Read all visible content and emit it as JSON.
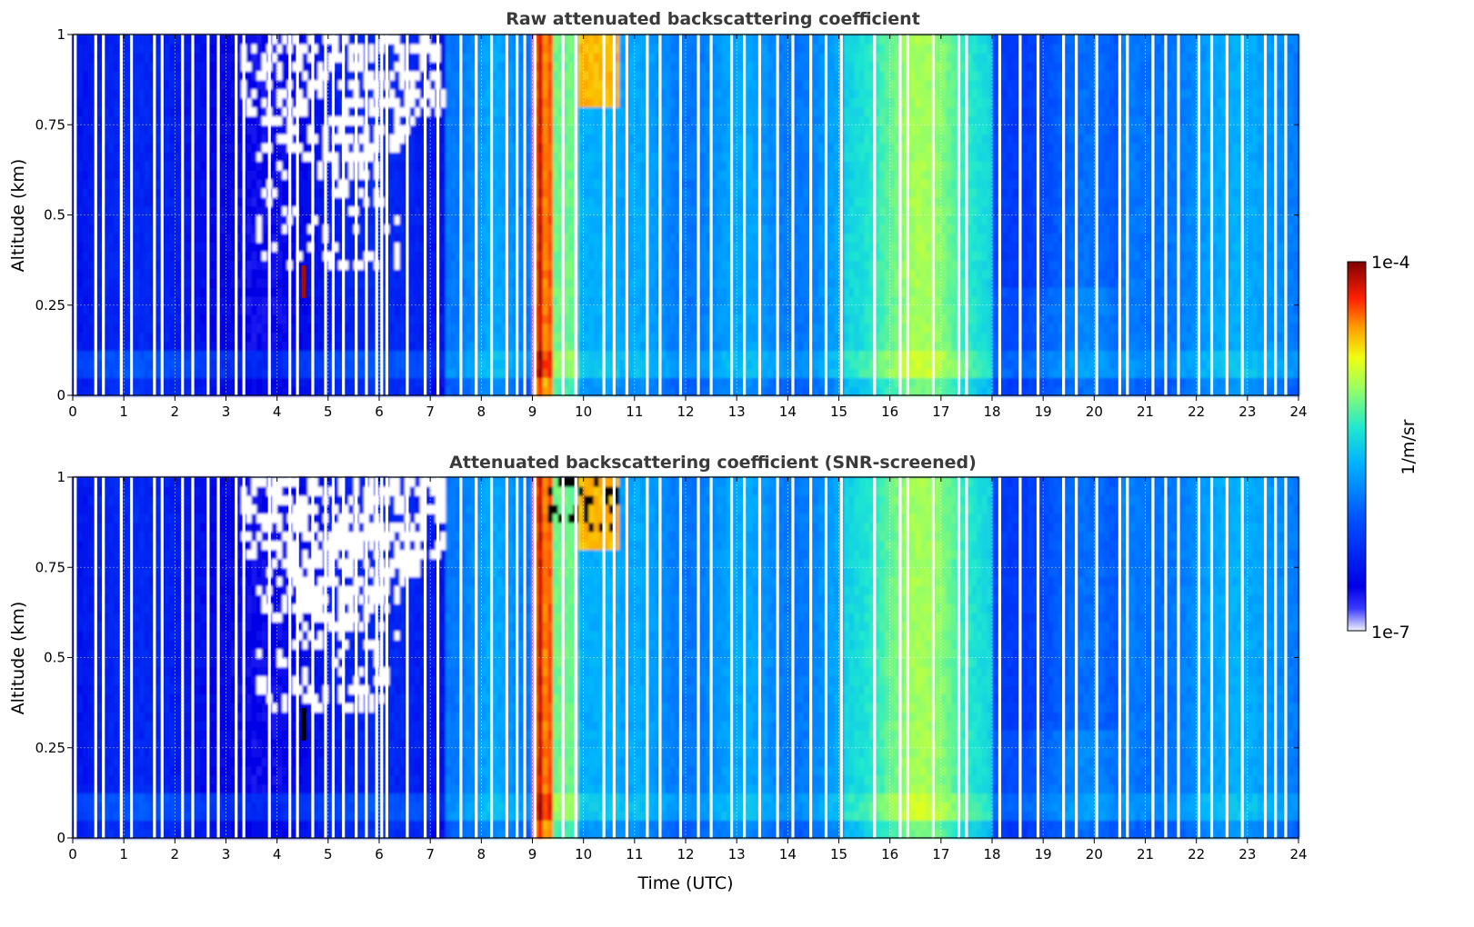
{
  "chart_data": [
    {
      "type": "heatmap",
      "title": "Raw attenuated backscattering coefficient",
      "xlabel": "",
      "ylabel": "Altitude (km)",
      "xlim": [
        0,
        24
      ],
      "ylim": [
        0,
        1
      ],
      "x_ticks": [
        "0",
        "1",
        "2",
        "3",
        "4",
        "5",
        "6",
        "7",
        "8",
        "9",
        "10",
        "11",
        "12",
        "13",
        "14",
        "15",
        "16",
        "17",
        "18",
        "19",
        "20",
        "21",
        "22",
        "23",
        "24"
      ],
      "y_ticks": [
        "0",
        "0.25",
        "0.5",
        "0.75",
        "1"
      ],
      "grid": true,
      "screened": false
    },
    {
      "type": "heatmap",
      "title": "Attenuated backscattering coefficient (SNR-screened)",
      "xlabel": "Time (UTC)",
      "ylabel": "Altitude (km)",
      "xlim": [
        0,
        24
      ],
      "ylim": [
        0,
        1
      ],
      "x_ticks": [
        "0",
        "1",
        "2",
        "3",
        "4",
        "5",
        "6",
        "7",
        "8",
        "9",
        "10",
        "11",
        "12",
        "13",
        "14",
        "15",
        "16",
        "17",
        "18",
        "19",
        "20",
        "21",
        "22",
        "23",
        "24"
      ],
      "y_ticks": [
        "0",
        "0.25",
        "0.5",
        "0.75",
        "1"
      ],
      "grid": true,
      "screened": true
    }
  ],
  "colorbar": {
    "label": "1/m/sr",
    "max_label": "1e-4",
    "min_label": "1e-7",
    "colormap": "jet"
  },
  "data_gaps_utc": [
    0.05,
    0.45,
    0.6,
    0.95,
    1.15,
    1.6,
    1.75,
    2.15,
    2.35,
    2.65,
    2.85,
    3.2,
    3.35,
    3.85,
    4.25,
    4.4,
    4.7,
    4.95,
    5.1,
    5.3,
    5.55,
    5.75,
    5.95,
    6.05,
    6.15,
    6.55,
    6.9,
    7.15,
    7.6,
    7.9,
    8.2,
    8.5,
    8.7,
    8.85,
    9.05,
    9.6,
    9.85,
    10.4,
    10.6,
    10.85,
    11.25,
    11.5,
    11.9,
    12.25,
    12.5,
    12.9,
    13.15,
    13.45,
    13.8,
    14.1,
    14.45,
    14.75,
    15.05,
    15.7,
    16.2,
    16.35,
    16.85,
    17.35,
    17.5,
    18.15,
    18.55,
    18.9,
    19.4,
    19.65,
    20.05,
    20.5,
    20.65,
    21.15,
    21.4,
    21.65,
    22.05,
    22.3,
    22.6,
    22.9,
    23.35,
    23.55,
    23.75
  ]
}
